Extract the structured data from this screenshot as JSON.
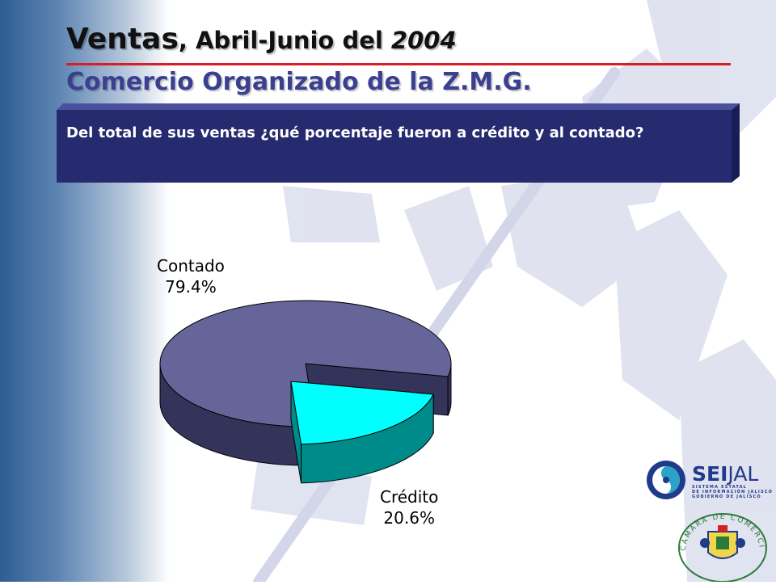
{
  "slide": {
    "title_main": "Ventas",
    "title_rest": ", Abril-Junio del ",
    "title_year": "2004",
    "subtitle": "Comercio Organizado de la Z.M.G.",
    "question": "Del total de sus ventas ¿qué porcentaje fueron a crédito y al contado?"
  },
  "colors": {
    "title_rule": "#d81f26",
    "subtitle": "#3b3f8f",
    "question_box": "#262a6f",
    "contado_top": "#66659a",
    "contado_side": "#34345a",
    "credito_top": "#00ffff",
    "credito_side": "#008b8b"
  },
  "chart_data": {
    "type": "pie",
    "style": "3d-exploded",
    "slices": [
      {
        "name": "Contado",
        "label": "79.4%",
        "value": 79.4
      },
      {
        "name": "Crédito",
        "label": "20.6%",
        "value": 20.6
      }
    ]
  },
  "logos": {
    "seijal": {
      "name_bold": "SEI",
      "name_regular": "JAL",
      "line1": "SISTEMA ESTATAL",
      "line2": "DE INFORMACIÓN JALISCO",
      "line3": "GOBIERNO DE JALISCO"
    },
    "camara": {
      "arc_text": "CAMARA DE COMERCIO DE GUADALAJARA"
    }
  }
}
